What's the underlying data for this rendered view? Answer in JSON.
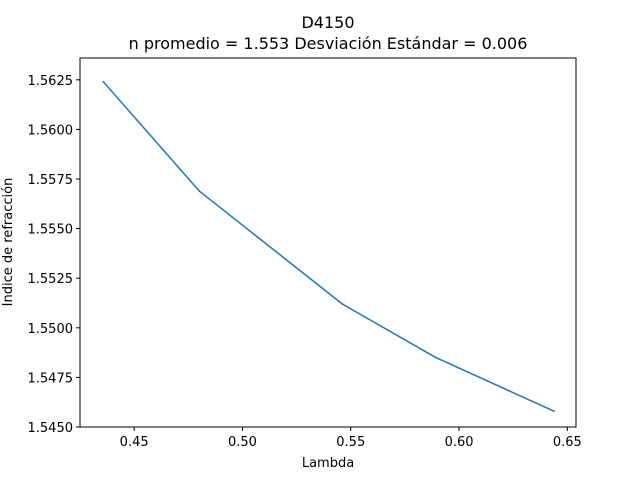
{
  "chart_data": {
    "type": "line",
    "title": "D4150",
    "subtitle": "n promedio = 1.553  Desviación Estándar = 0.006",
    "xlabel": "Lambda",
    "ylabel": "Indice de refracción",
    "xlim": [
      0.425,
      0.654
    ],
    "ylim": [
      1.545,
      1.5636
    ],
    "xticks": [
      0.45,
      0.5,
      0.55,
      0.6,
      0.65
    ],
    "xtick_labels": [
      "0.45",
      "0.50",
      "0.55",
      "0.60",
      "0.65"
    ],
    "yticks": [
      1.545,
      1.5475,
      1.55,
      1.5525,
      1.555,
      1.5575,
      1.56,
      1.5625
    ],
    "ytick_labels": [
      "1.5450",
      "1.5475",
      "1.5500",
      "1.5525",
      "1.5550",
      "1.5575",
      "1.5600",
      "1.5625"
    ],
    "grid": false,
    "series": [
      {
        "color": "#1f77b4",
        "x": [
          0.4358,
          0.48,
          0.5461,
          0.5893,
          0.6438
        ],
        "y": [
          1.5624,
          1.5569,
          1.5512,
          1.5485,
          1.5458
        ]
      }
    ]
  }
}
